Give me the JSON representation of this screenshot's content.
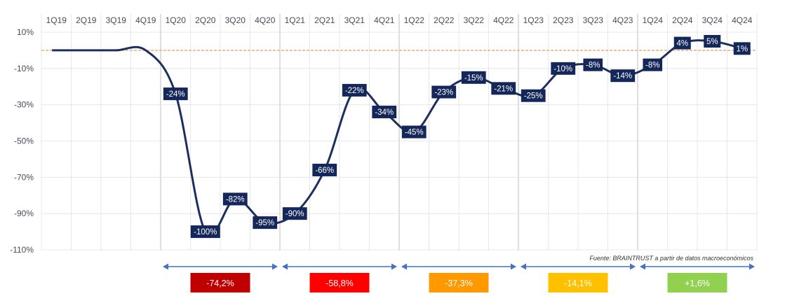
{
  "chart_data": {
    "type": "line",
    "categories": [
      "1Q19",
      "2Q19",
      "3Q19",
      "4Q19",
      "1Q20",
      "2Q20",
      "3Q20",
      "4Q20",
      "1Q21",
      "2Q21",
      "3Q21",
      "4Q21",
      "1Q22",
      "2Q22",
      "3Q22",
      "4Q22",
      "1Q23",
      "2Q23",
      "3Q23",
      "4Q23",
      "1Q24",
      "2Q24",
      "3Q24",
      "4Q24"
    ],
    "yticks": [
      "10%",
      "-10%",
      "-30%",
      "-50%",
      "-70%",
      "-90%",
      "-110%"
    ],
    "ylim": [
      -110,
      10
    ],
    "reference_line": 0,
    "series": [
      {
        "values": [
          0,
          0,
          0,
          0,
          -24,
          -100,
          -82,
          -95,
          -90,
          -66,
          -22,
          -34,
          -45,
          -23,
          -15,
          -21,
          -25,
          -10,
          -8,
          -14,
          -8,
          4,
          5,
          1
        ],
        "data_labels": [
          "",
          "",
          "",
          "",
          "-24%",
          "-100%",
          "-82%",
          "-95%",
          "-90%",
          "-66%",
          "-22%",
          "-34%",
          "-45%",
          "-23%",
          "-15%",
          "-21%",
          "-25%",
          "-10%",
          "-8%",
          "-14%",
          "-8%",
          "4%",
          "5%",
          "1%"
        ]
      }
    ],
    "source": "Fuente: BRAINTRUST a partir de datos macroeconómicos",
    "periods": [
      {
        "label": "-74,2%",
        "color": "#c00000",
        "start": 4,
        "end": 8
      },
      {
        "label": "-58,8%",
        "color": "#ff0000",
        "start": 8,
        "end": 12
      },
      {
        "label": "-37,3%",
        "color": "#ff9900",
        "start": 12,
        "end": 16
      },
      {
        "label": "-14,1%",
        "color": "#ffc000",
        "start": 16,
        "end": 20
      },
      {
        "label": "+1,6%",
        "color": "#92d050",
        "start": 20,
        "end": 24
      }
    ],
    "colors": {
      "line": "#1b2f5e",
      "reference": "#f4b183",
      "arrow": "#4472c4",
      "grid": "#e2e2e2",
      "year_sep": "#c8c8c8"
    }
  }
}
